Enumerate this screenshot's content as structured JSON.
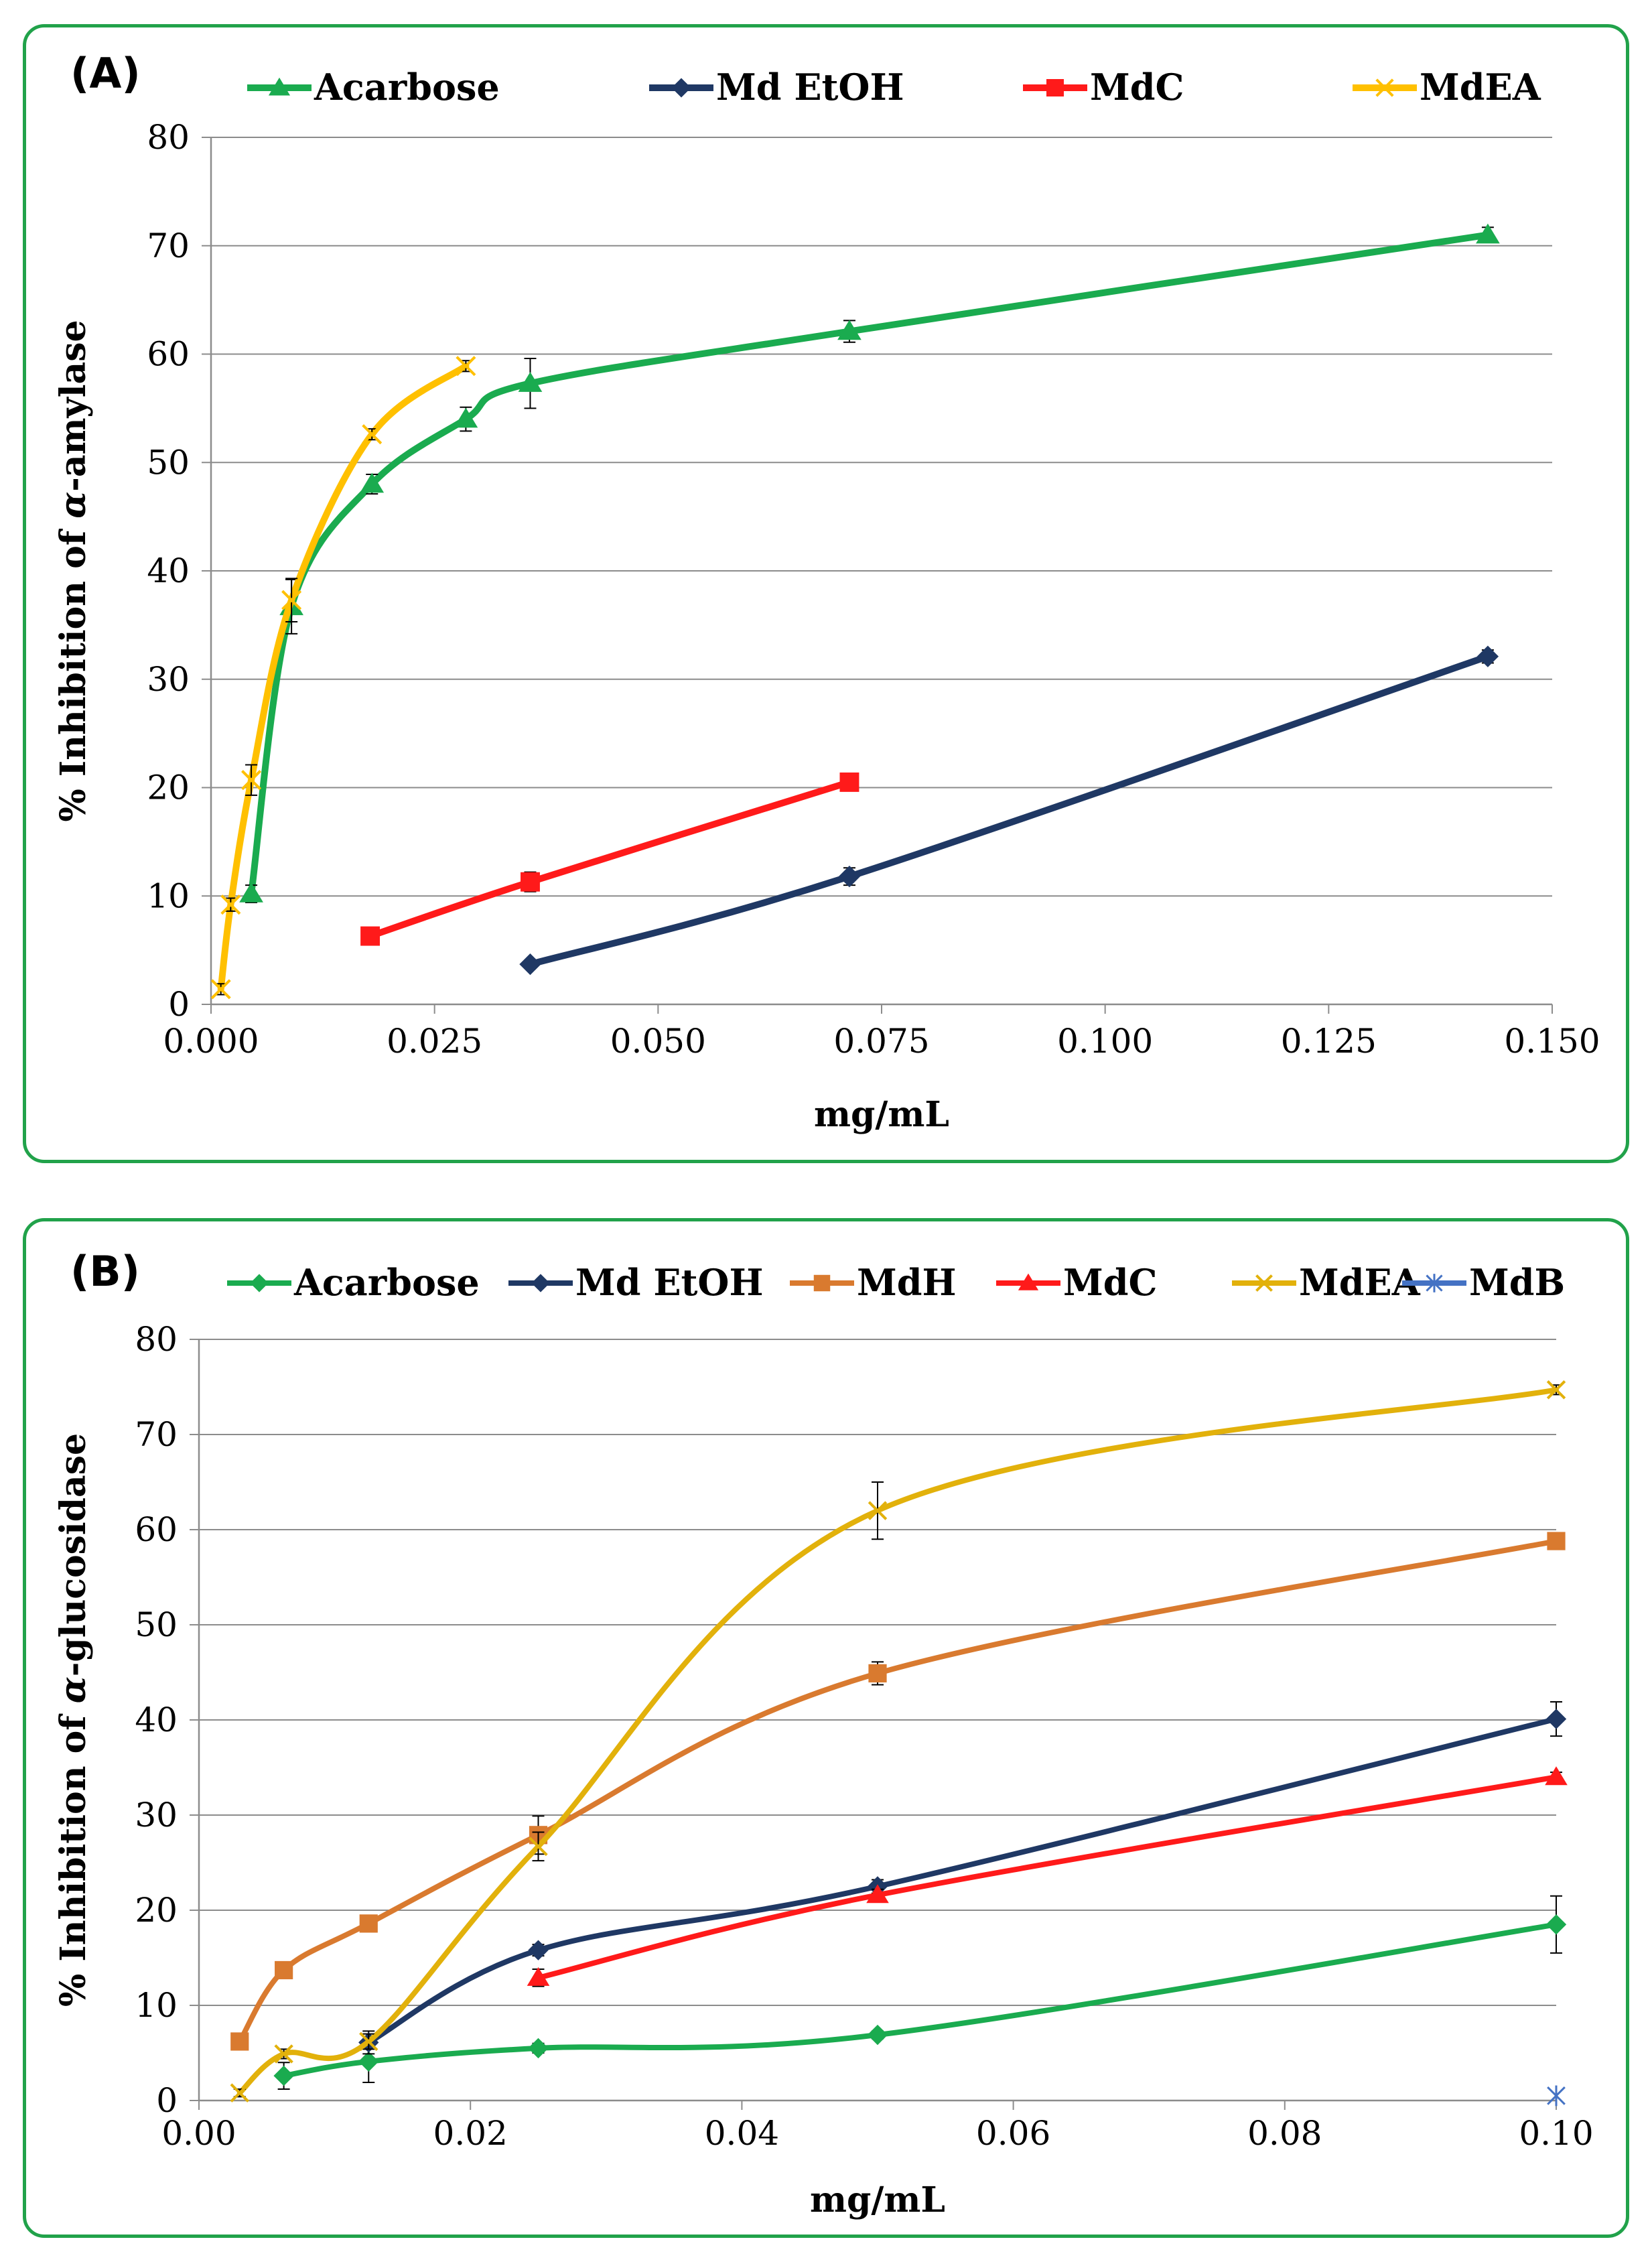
{
  "chart_data": [
    {
      "id": "A",
      "type": "line",
      "panel_label": "(A)",
      "xlabel": "mg/mL",
      "ylabel_prefix": "% Inhibition of ",
      "ylabel_greek": "α",
      "ylabel_suffix": "-amylase",
      "xlim": [
        0,
        0.15
      ],
      "ylim": [
        0,
        80
      ],
      "xticks": [
        0,
        0.025,
        0.05,
        0.075,
        0.1,
        0.125,
        0.15
      ],
      "xtick_labels": [
        "0.000",
        "0.025",
        "0.050",
        "0.075",
        "0.100",
        "0.125",
        "0.150"
      ],
      "yticks": [
        0,
        10,
        20,
        30,
        40,
        50,
        60,
        70,
        80
      ],
      "ytick_labels": [
        "0",
        "10",
        "20",
        "30",
        "40",
        "50",
        "60",
        "70",
        "80"
      ],
      "grid": "horizontal",
      "legend_position": "top",
      "series": [
        {
          "name": "Acarbose",
          "color": "#1aab4f",
          "marker": "triangle",
          "x": [
            0.0045,
            0.009,
            0.018,
            0.0285,
            0.0357,
            0.0714,
            0.1428
          ],
          "y": [
            10.2,
            36.7,
            48.0,
            54.0,
            57.3,
            62.1,
            71.0
          ],
          "err": [
            0.8,
            2.5,
            0.9,
            1.1,
            2.3,
            1.0,
            0.7
          ]
        },
        {
          "name": "Md EtOH",
          "color": "#1f3864",
          "marker": "diamond",
          "x": [
            0.0357,
            0.0714,
            0.1428
          ],
          "y": [
            3.7,
            11.8,
            32.1
          ],
          "err": [
            0.3,
            0.8,
            0.6
          ]
        },
        {
          "name": "MdC",
          "color": "#ff1a1a",
          "marker": "square",
          "x": [
            0.0178,
            0.0357,
            0.0714
          ],
          "y": [
            6.3,
            11.3,
            20.5
          ],
          "err": [
            0.4,
            0.9,
            0.3
          ]
        },
        {
          "name": "MdEA",
          "color": "#ffc000",
          "marker": "x",
          "x": [
            0.0011,
            0.0022,
            0.0045,
            0.009,
            0.018,
            0.0285
          ],
          "y": [
            1.4,
            9.2,
            20.7,
            37.3,
            52.6,
            58.9
          ],
          "err": [
            0.5,
            0.6,
            1.4,
            2.0,
            0.5,
            0.5
          ]
        }
      ]
    },
    {
      "id": "B",
      "type": "line",
      "panel_label": "(B)",
      "xlabel": "mg/mL",
      "ylabel_prefix": "% Inhibition of ",
      "ylabel_greek": "α",
      "ylabel_suffix": "-glucosidase",
      "xlim": [
        0,
        0.1
      ],
      "ylim": [
        0,
        80
      ],
      "xticks": [
        0,
        0.02,
        0.04,
        0.06,
        0.08,
        0.1
      ],
      "xtick_labels": [
        "0.00",
        "0.02",
        "0.04",
        "0.06",
        "0.08",
        "0.10"
      ],
      "yticks": [
        0,
        10,
        20,
        30,
        40,
        50,
        60,
        70,
        80
      ],
      "ytick_labels": [
        "0",
        "10",
        "20",
        "30",
        "40",
        "50",
        "60",
        "70",
        "80"
      ],
      "grid": "horizontal",
      "legend_position": "top",
      "series": [
        {
          "name": "Acarbose",
          "color": "#1aab4f",
          "marker": "diamond",
          "x": [
            0.00625,
            0.0125,
            0.025,
            0.05,
            0.1
          ],
          "y": [
            2.6,
            4.1,
            5.5,
            6.9,
            18.5
          ],
          "err": [
            1.4,
            2.2,
            0.5,
            0.4,
            3.0
          ]
        },
        {
          "name": "Md EtOH",
          "color": "#1f3864",
          "marker": "diamond",
          "x": [
            0.0125,
            0.025,
            0.05,
            0.1
          ],
          "y": [
            6.1,
            15.8,
            22.5,
            40.1
          ],
          "err": [
            1.2,
            0.6,
            0.7,
            1.8
          ]
        },
        {
          "name": "MdH",
          "color": "#d97a2f",
          "marker": "square",
          "x": [
            0.003,
            0.00625,
            0.0125,
            0.025,
            0.05,
            0.1
          ],
          "y": [
            6.2,
            13.7,
            18.6,
            27.9,
            44.9,
            58.8
          ],
          "err": [
            0.4,
            0.5,
            0.6,
            2.0,
            1.2,
            0.5
          ]
        },
        {
          "name": "MdC",
          "color": "#ff1a1a",
          "marker": "triangle",
          "x": [
            0.025,
            0.05,
            0.1
          ],
          "y": [
            12.9,
            21.6,
            34.0
          ],
          "err": [
            0.9,
            0.6,
            0.5
          ]
        },
        {
          "name": "MdEA",
          "color": "#e2b10b",
          "marker": "x",
          "x": [
            0.003,
            0.00625,
            0.0125,
            0.025,
            0.05,
            0.1
          ],
          "y": [
            0.8,
            4.9,
            6.2,
            26.7,
            62.0,
            74.7
          ],
          "err": [
            0.4,
            0.5,
            0.8,
            1.5,
            3.0,
            0.5
          ]
        },
        {
          "name": "MdB",
          "color": "#4472c4",
          "marker": "star",
          "x": [
            0.1
          ],
          "y": [
            0.5
          ],
          "err": [
            0
          ]
        }
      ]
    }
  ]
}
